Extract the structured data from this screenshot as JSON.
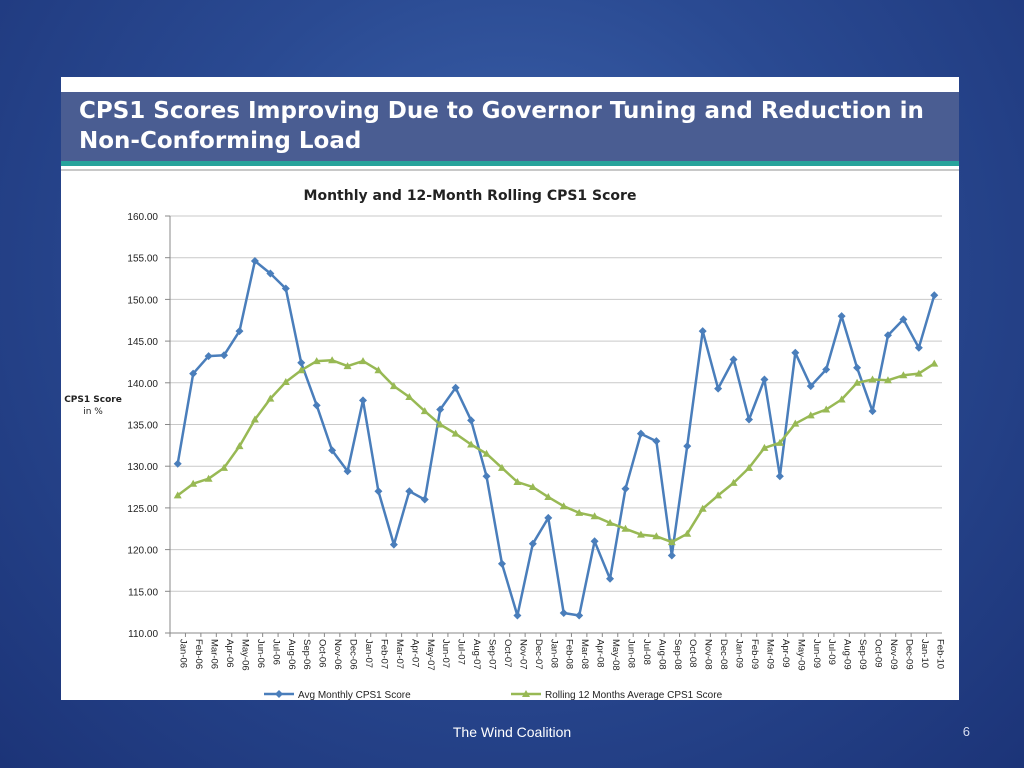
{
  "slide": {
    "title": "CPS1 Scores Improving Due to Governor Tuning and Reduction in Non-Conforming Load",
    "footer": "The Wind Coalition",
    "page_number": "6"
  },
  "colors": {
    "background": "#2a4a92",
    "title_band": "#4a5d92",
    "accent_rule": "#27a39b",
    "series_monthly": "#4a7ebb",
    "series_rolling": "#98b954"
  },
  "chart_data": {
    "type": "line",
    "title": "Monthly and 12-Month Rolling CPS1 Score",
    "xlabel": "",
    "ylabel": "CPS1 Score in %",
    "ylim": [
      110,
      160
    ],
    "yticks": [
      "160.00",
      "155.00",
      "150.00",
      "145.00",
      "140.00",
      "135.00",
      "130.00",
      "125.00",
      "120.00",
      "115.00",
      "110.00"
    ],
    "grid": true,
    "legend_position": "bottom",
    "categories": [
      "Jan-06",
      "Feb-06",
      "Mar-06",
      "Apr-06",
      "May-06",
      "Jun-06",
      "Jul-06",
      "Aug-06",
      "Sep-06",
      "Oct-06",
      "Nov-06",
      "Dec-06",
      "Jan-07",
      "Feb-07",
      "Mar-07",
      "Apr-07",
      "May-07",
      "Jun-07",
      "Jul-07",
      "Aug-07",
      "Sep-07",
      "Oct-07",
      "Nov-07",
      "Dec-07",
      "Jan-08",
      "Feb-08",
      "Mar-08",
      "Apr-08",
      "May-08",
      "Jun-08",
      "Jul-08",
      "Aug-08",
      "Sep-08",
      "Oct-08",
      "Nov-08",
      "Dec-08",
      "Jan-09",
      "Feb-09",
      "Mar-09",
      "Apr-09",
      "May-09",
      "Jun-09",
      "Jul-09",
      "Aug-09",
      "Sep-09",
      "Oct-09",
      "Nov-09",
      "Dec-09",
      "Jan-10",
      "Feb-10"
    ],
    "series": [
      {
        "name": "Avg Monthly CPS1 Score",
        "color": "#4a7ebb",
        "marker": "diamond",
        "values": [
          130.3,
          141.1,
          143.2,
          143.3,
          146.2,
          154.6,
          153.1,
          151.3,
          142.4,
          137.3,
          131.9,
          129.4,
          137.9,
          127.0,
          120.6,
          127.0,
          126.0,
          136.8,
          139.4,
          135.5,
          128.8,
          118.3,
          112.1,
          120.7,
          123.8,
          112.4,
          112.1,
          121.0,
          116.5,
          127.3,
          133.9,
          133.0,
          119.3,
          132.4,
          146.2,
          139.3,
          142.8,
          135.6,
          140.4,
          128.8,
          143.6,
          139.6,
          141.6,
          148.0,
          141.8,
          136.6,
          145.7,
          147.6,
          144.2,
          150.5
        ]
      },
      {
        "name": "Rolling 12 Months Average CPS1 Score",
        "color": "#98b954",
        "marker": "triangle",
        "values": [
          126.5,
          127.9,
          128.5,
          129.8,
          132.4,
          135.6,
          138.1,
          140.1,
          141.5,
          142.6,
          142.7,
          142.0,
          142.6,
          141.5,
          139.6,
          138.3,
          136.6,
          135.0,
          133.9,
          132.6,
          131.5,
          129.8,
          128.1,
          127.5,
          126.3,
          125.2,
          124.4,
          124.0,
          123.2,
          122.5,
          121.8,
          121.6,
          120.9,
          121.9,
          124.9,
          126.5,
          128.0,
          129.8,
          132.2,
          132.8,
          135.1,
          136.1,
          136.8,
          138.0,
          140.0,
          140.4,
          140.3,
          140.9,
          141.1,
          142.3
        ]
      }
    ]
  }
}
